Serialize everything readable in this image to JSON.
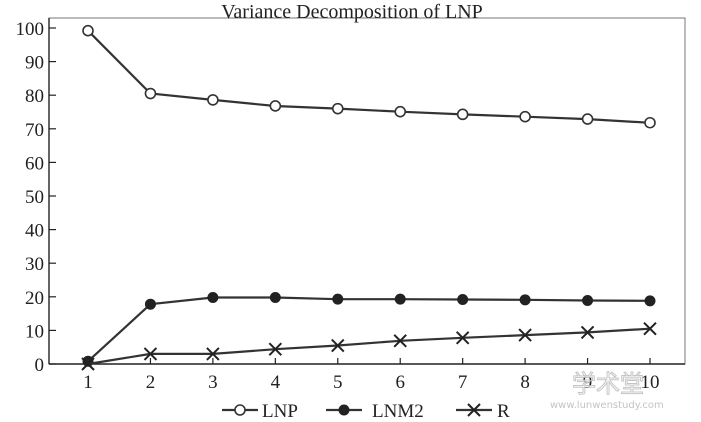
{
  "chart_data": {
    "type": "line",
    "title": "Variance Decomposition of LNP",
    "x": [
      1,
      2,
      3,
      4,
      5,
      6,
      7,
      8,
      9,
      10
    ],
    "xticks": [
      "1",
      "2",
      "3",
      "4",
      "5",
      "6",
      "7",
      "8",
      "9",
      "10"
    ],
    "ylim": [
      0,
      100
    ],
    "yticks": [
      0,
      10,
      20,
      30,
      40,
      50,
      60,
      70,
      80,
      90,
      100
    ],
    "grid": false,
    "legend_position": "bottom-center",
    "series": [
      {
        "name": "LNP",
        "marker": "open-circle",
        "values": [
          99.2,
          80.5,
          78.6,
          76.8,
          76.0,
          75.1,
          74.3,
          73.6,
          72.9,
          71.8
        ]
      },
      {
        "name": "LNM2",
        "marker": "filled-circle",
        "values": [
          0.8,
          17.8,
          19.8,
          19.8,
          19.3,
          19.3,
          19.2,
          19.1,
          18.9,
          18.8
        ]
      },
      {
        "name": "R",
        "marker": "x",
        "values": [
          0.0,
          3.0,
          3.0,
          4.4,
          5.5,
          6.9,
          7.8,
          8.6,
          9.4,
          10.5
        ]
      }
    ],
    "colors": {
      "line": "#333333",
      "axis": "#222222",
      "frame": "#777777"
    }
  },
  "watermark": {
    "text": "学术堂",
    "url": "www.lunwenstudy.com"
  }
}
